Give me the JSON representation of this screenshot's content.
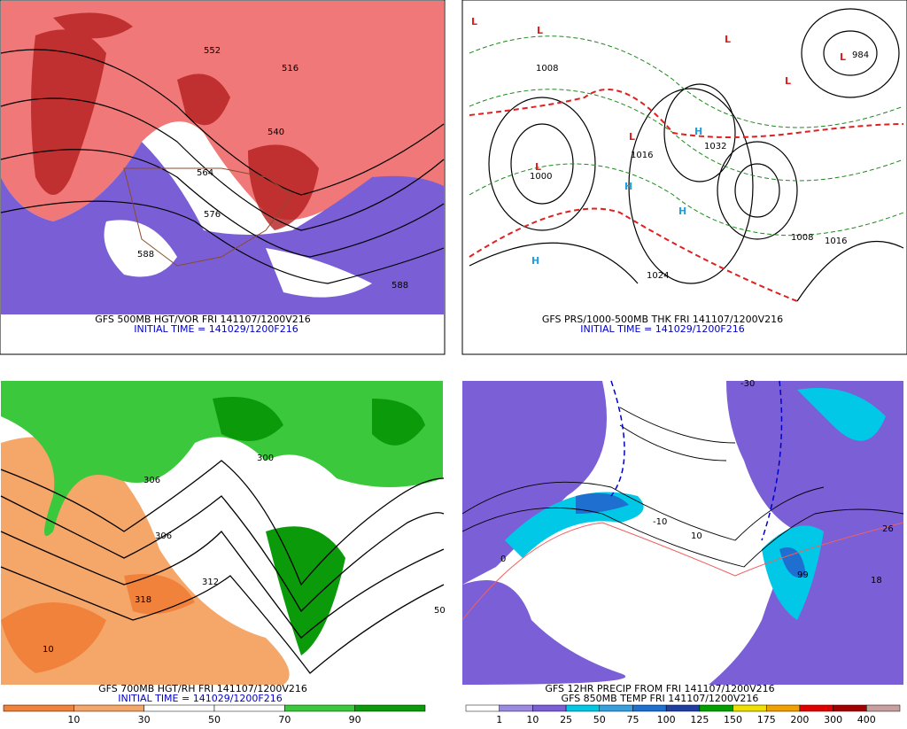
{
  "panels": [
    {
      "lines": [
        "GFS 500MB HGT/VOR FRI 141107/1200V216",
        "INITIAL TIME = 141029/1200F216"
      ],
      "labels": [
        "588",
        "576",
        "564",
        "540",
        "516",
        "552",
        "588"
      ]
    },
    {
      "lines": [
        "GFS PRS/1000-500MB THK FRI 141107/1200V216",
        "INITIAL TIME = 141029/1200F216"
      ],
      "labels": [
        "L",
        "L",
        "L",
        "L",
        "L",
        "L",
        "L",
        "H",
        "H",
        "H",
        "H",
        "1008",
        "1016",
        "1032",
        "984",
        "1000",
        "1024",
        "1008",
        "1016"
      ]
    },
    {
      "lines": [
        "GFS 700MB HGT/RH FRI 141107/1200V216",
        "INITIAL TIME = 141029/1200F216"
      ],
      "labels": [
        "318",
        "312",
        "306",
        "300",
        "10",
        "50",
        "306"
      ],
      "colorbar": {
        "colors": [
          "#f0823c",
          "#f5a76a",
          "#ffffff",
          "#ffffff",
          "#3cc83c",
          "#0a9a0a"
        ],
        "ticks": [
          10,
          30,
          50,
          70,
          90
        ]
      }
    },
    {
      "lines": [
        "GFS 12HR PRECIP FROM FRI 141107/1200V216",
        "GFS 850MB TEMP FRI 141107/1200V216"
      ],
      "labels": [
        "0",
        "10",
        "26",
        "18",
        "99",
        "-10",
        "-30"
      ],
      "colorbar": {
        "colors": [
          "#ffffff",
          "#9b8be0",
          "#7b5fd6",
          "#00c8e6",
          "#38a0e0",
          "#1f6fd0",
          "#1f3fa0",
          "#00a000",
          "#f0e000",
          "#f0a000",
          "#e00000",
          "#a00000",
          "#c8a0a0"
        ],
        "ticks": [
          1,
          10,
          25,
          50,
          75,
          100,
          125,
          150,
          175,
          200,
          300,
          400
        ]
      }
    }
  ]
}
